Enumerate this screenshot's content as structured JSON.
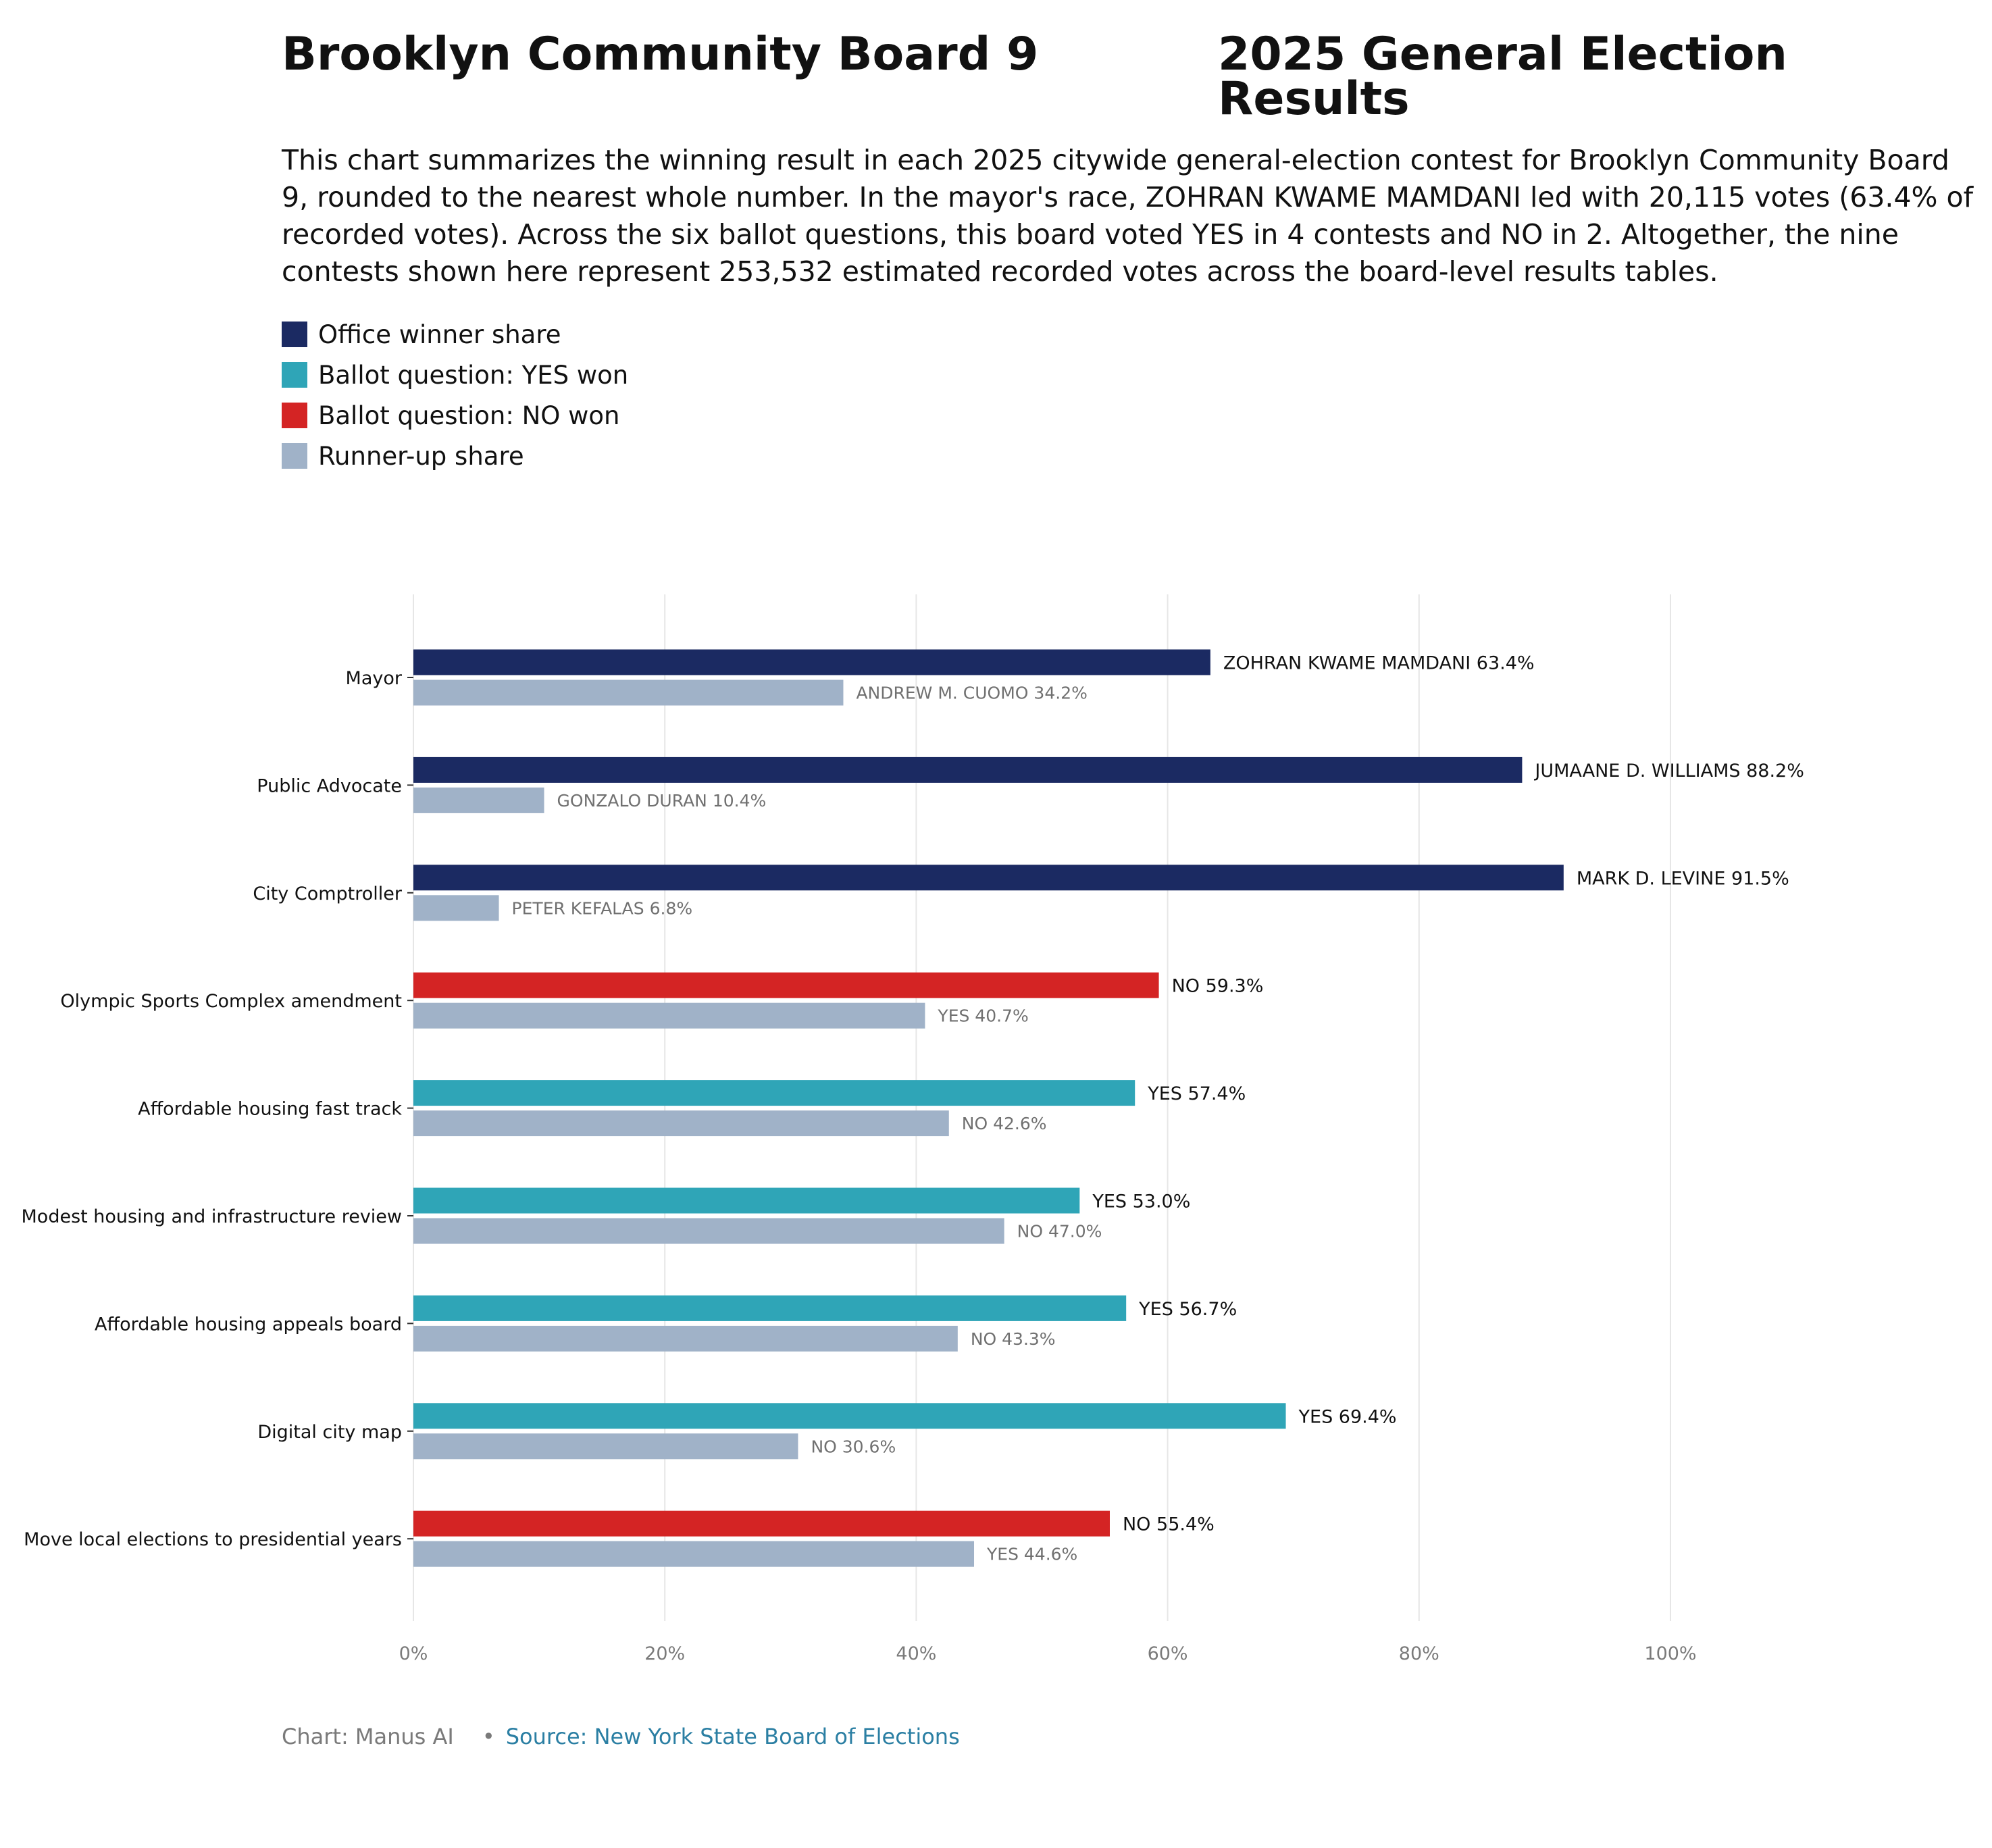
{
  "header": {
    "title_left": "Brooklyn Community Board 9",
    "title_right": "2025 General Election Results",
    "description": "This chart summarizes the winning result in each 2025 citywide general-election contest for Brooklyn Community Board 9, rounded to the nearest whole number. In the mayor's race, ZOHRAN KWAME MAMDANI led with 20,115 votes (63.4% of recorded votes). Across the six ballot questions, this board voted YES in 4 contests and NO in 2. Altogether, the nine contests shown here represent 253,532 estimated recorded votes across the board-level results tables."
  },
  "legend": [
    {
      "label": "Office winner share",
      "color": "#1b2a62"
    },
    {
      "label": "Ballot question: YES won",
      "color": "#2fa5b7"
    },
    {
      "label": "Ballot question: NO won",
      "color": "#d42424"
    },
    {
      "label": "Runner-up share",
      "color": "#a0b2c8"
    }
  ],
  "footer": {
    "credit": "Chart: Manus AI",
    "separator": "•",
    "source": "Source: New York State Board of Elections"
  },
  "chart_data": {
    "type": "bar",
    "orientation": "horizontal",
    "xlim": [
      0,
      100
    ],
    "x_ticks": [
      "0%",
      "20%",
      "40%",
      "60%",
      "80%",
      "100%"
    ],
    "grid": "vertical",
    "categories": [
      "Mayor",
      "Public Advocate",
      "City Comptroller",
      "Olympic Sports Complex amendment",
      "Affordable housing fast track",
      "Modest housing and infrastructure review",
      "Affordable housing appeals board",
      "Digital city map",
      "Move local elections to presidential years"
    ],
    "winner": [
      {
        "value": 63.4,
        "label": "ZOHRAN KWAME MAMDANI 63.4%",
        "kind": "office"
      },
      {
        "value": 88.2,
        "label": "JUMAANE D. WILLIAMS 88.2%",
        "kind": "office"
      },
      {
        "value": 91.5,
        "label": "MARK D. LEVINE 91.5%",
        "kind": "office"
      },
      {
        "value": 59.3,
        "label": "NO 59.3%",
        "kind": "no"
      },
      {
        "value": 57.4,
        "label": "YES 57.4%",
        "kind": "yes"
      },
      {
        "value": 53.0,
        "label": "YES 53.0%",
        "kind": "yes"
      },
      {
        "value": 56.7,
        "label": "YES 56.7%",
        "kind": "yes"
      },
      {
        "value": 69.4,
        "label": "YES 69.4%",
        "kind": "yes"
      },
      {
        "value": 55.4,
        "label": "NO 55.4%",
        "kind": "no"
      }
    ],
    "runner_up": [
      {
        "value": 34.2,
        "label": "ANDREW M. CUOMO 34.2%"
      },
      {
        "value": 10.4,
        "label": "GONZALO DURAN 10.4%"
      },
      {
        "value": 6.8,
        "label": "PETER KEFALAS 6.8%"
      },
      {
        "value": 40.7,
        "label": "YES 40.7%"
      },
      {
        "value": 42.6,
        "label": "NO 42.6%"
      },
      {
        "value": 47.0,
        "label": "NO 47.0%"
      },
      {
        "value": 43.3,
        "label": "NO 43.3%"
      },
      {
        "value": 30.6,
        "label": "NO 30.6%"
      },
      {
        "value": 44.6,
        "label": "YES 44.6%"
      }
    ],
    "colors": {
      "office": "#1b2a62",
      "yes": "#2fa5b7",
      "no": "#d42424",
      "runner_up": "#a0b2c8",
      "grid": "#e6e6e6",
      "tick_text": "#7a7a7a",
      "runner_label": "#707070"
    }
  }
}
